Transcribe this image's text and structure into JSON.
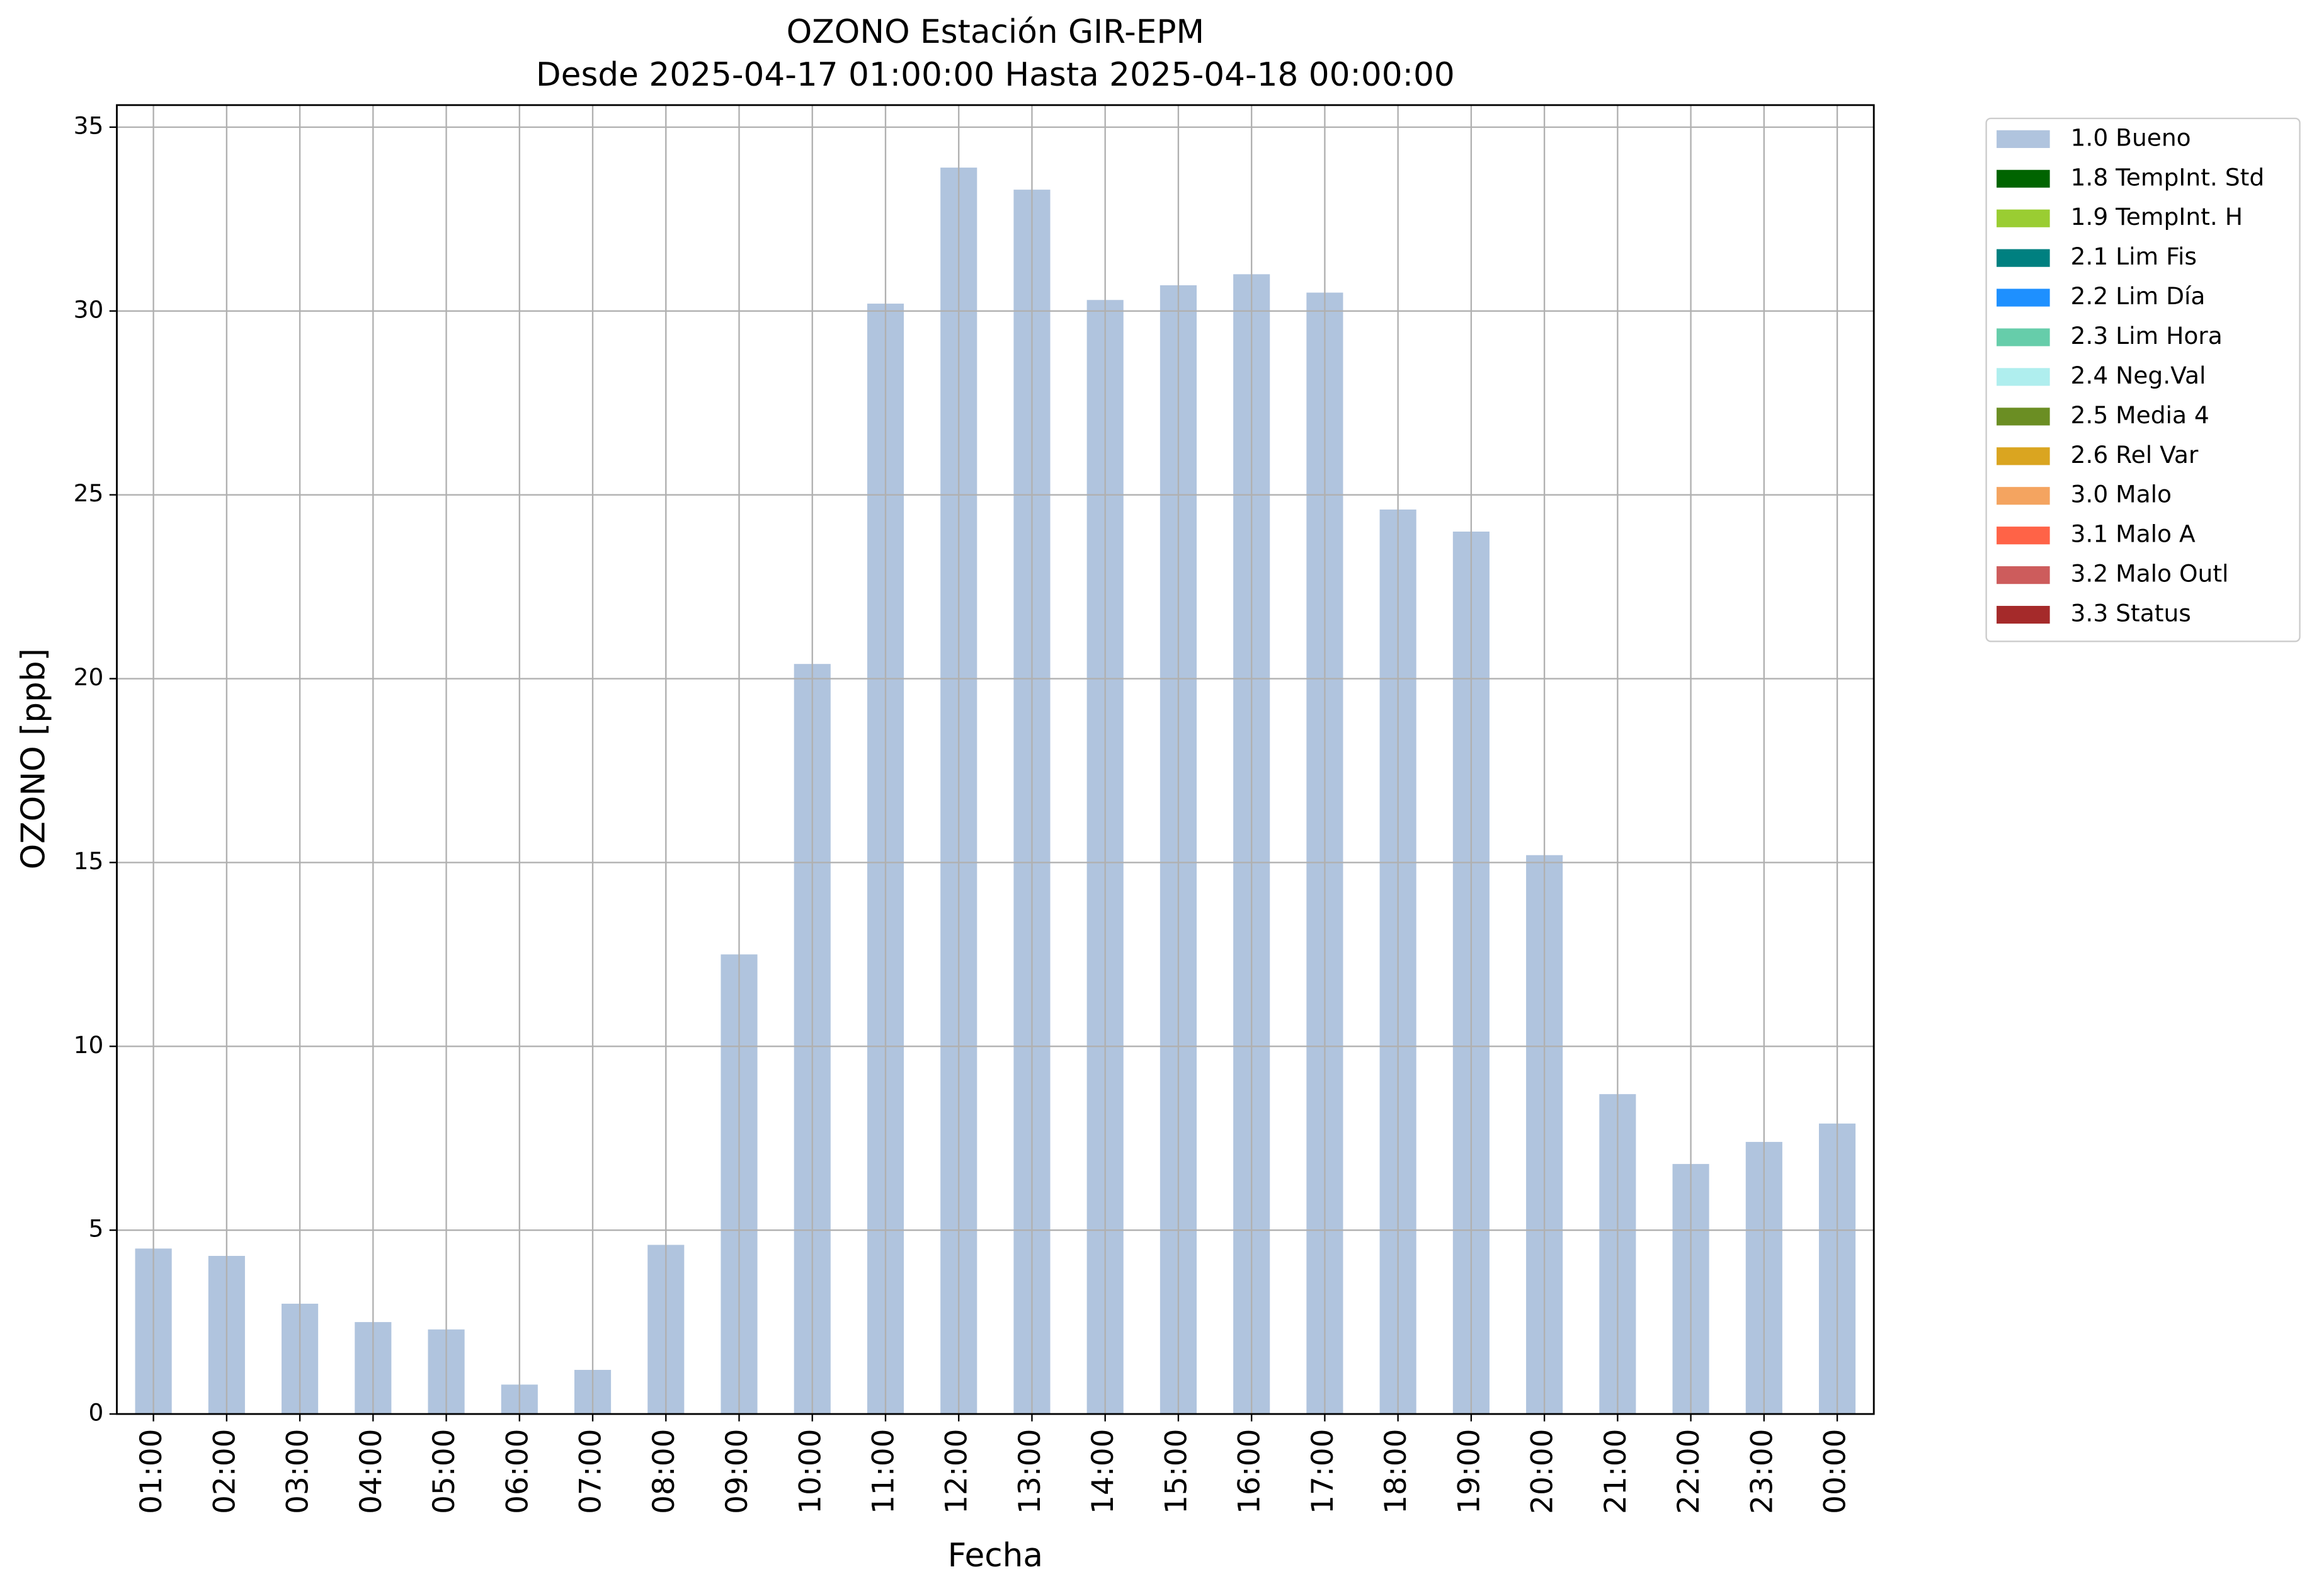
{
  "chart_data": {
    "type": "bar",
    "title": "OZONO Estación GIR-EPM",
    "subtitle": "Desde 2025-04-17 01:00:00 Hasta 2025-04-18 00:00:00",
    "x_label": "Fecha",
    "y_label": "OZONO [ppb]",
    "categories": [
      "01:00",
      "02:00",
      "03:00",
      "04:00",
      "05:00",
      "06:00",
      "07:00",
      "08:00",
      "09:00",
      "10:00",
      "11:00",
      "12:00",
      "13:00",
      "14:00",
      "15:00",
      "16:00",
      "17:00",
      "18:00",
      "19:00",
      "20:00",
      "21:00",
      "22:00",
      "23:00",
      "00:00"
    ],
    "series": [
      {
        "name": "1.0 Bueno",
        "color": "#b0c4de",
        "values": [
          4.5,
          4.3,
          3.0,
          2.5,
          2.3,
          0.8,
          1.2,
          4.6,
          12.5,
          20.4,
          30.2,
          33.9,
          33.3,
          30.3,
          30.7,
          31.0,
          30.5,
          24.6,
          24.0,
          15.2,
          8.7,
          6.8,
          7.4,
          7.9
        ]
      },
      {
        "name": "1.8 TempInt. Std",
        "color": "#006400"
      },
      {
        "name": "1.9 TempInt. H",
        "color": "#9acd32"
      },
      {
        "name": "2.1 Lim Fis",
        "color": "#008080"
      },
      {
        "name": "2.2 Lim Día",
        "color": "#1e90ff"
      },
      {
        "name": "2.3 Lim Hora",
        "color": "#66cdaa"
      },
      {
        "name": "2.4 Neg.Val",
        "color": "#afeeee"
      },
      {
        "name": "2.5 Media 4",
        "color": "#6b8e23"
      },
      {
        "name": "2.6 Rel Var",
        "color": "#daa520"
      },
      {
        "name": "3.0 Malo",
        "color": "#f4a460"
      },
      {
        "name": "3.1 Malo A",
        "color": "#ff6347"
      },
      {
        "name": "3.2 Malo Outl",
        "color": "#cd5c5c"
      },
      {
        "name": "3.3 Status",
        "color": "#a52a2a"
      }
    ],
    "ylim": [
      0,
      35.6
    ],
    "yticks": [
      0,
      5,
      10,
      15,
      20,
      25,
      30,
      35
    ],
    "grid": true,
    "legend": "outside-upper-right"
  }
}
